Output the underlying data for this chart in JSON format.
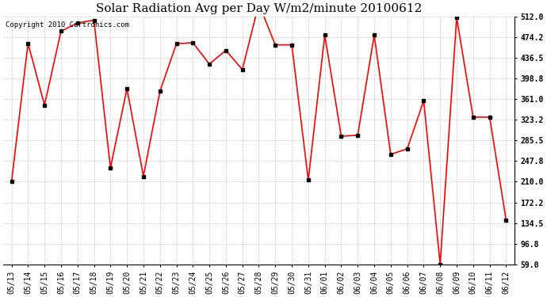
{
  "title": "Solar Radiation Avg per Day W/m2/minute 20100612",
  "copyright": "Copyright 2010 Cartronics.com",
  "labels": [
    "05/13",
    "05/14",
    "05/15",
    "05/16",
    "05/17",
    "05/18",
    "05/19",
    "05/20",
    "05/21",
    "05/22",
    "05/23",
    "05/24",
    "05/25",
    "05/26",
    "05/27",
    "05/28",
    "05/29",
    "05/30",
    "05/31",
    "06/01",
    "06/02",
    "06/03",
    "06/04",
    "06/05",
    "06/06",
    "06/07",
    "06/08",
    "06/09",
    "06/10",
    "06/11",
    "06/12"
  ],
  "values": [
    210.0,
    463.0,
    350.0,
    485.0,
    500.0,
    505.0,
    235.0,
    380.0,
    220.0,
    375.0,
    462.0,
    464.0,
    425.0,
    450.0,
    415.0,
    535.0,
    460.0,
    460.0,
    213.0,
    478.0,
    293.0,
    295.0,
    478.0,
    260.0,
    270.0,
    358.0,
    59.0,
    510.0,
    328.0,
    328.0,
    140.0
  ],
  "yticks": [
    59.0,
    96.8,
    134.5,
    172.2,
    210.0,
    247.8,
    285.5,
    323.2,
    361.0,
    398.8,
    436.5,
    474.2,
    512.0
  ],
  "ymin": 59.0,
  "ymax": 512.0,
  "line_color": "#ff0000",
  "marker_color": "#000000",
  "bg_color": "#ffffff",
  "grid_color": "#bbbbbb",
  "title_fontsize": 11,
  "copyright_fontsize": 6.5,
  "tick_fontsize": 7,
  "ytick_fontsize": 7
}
